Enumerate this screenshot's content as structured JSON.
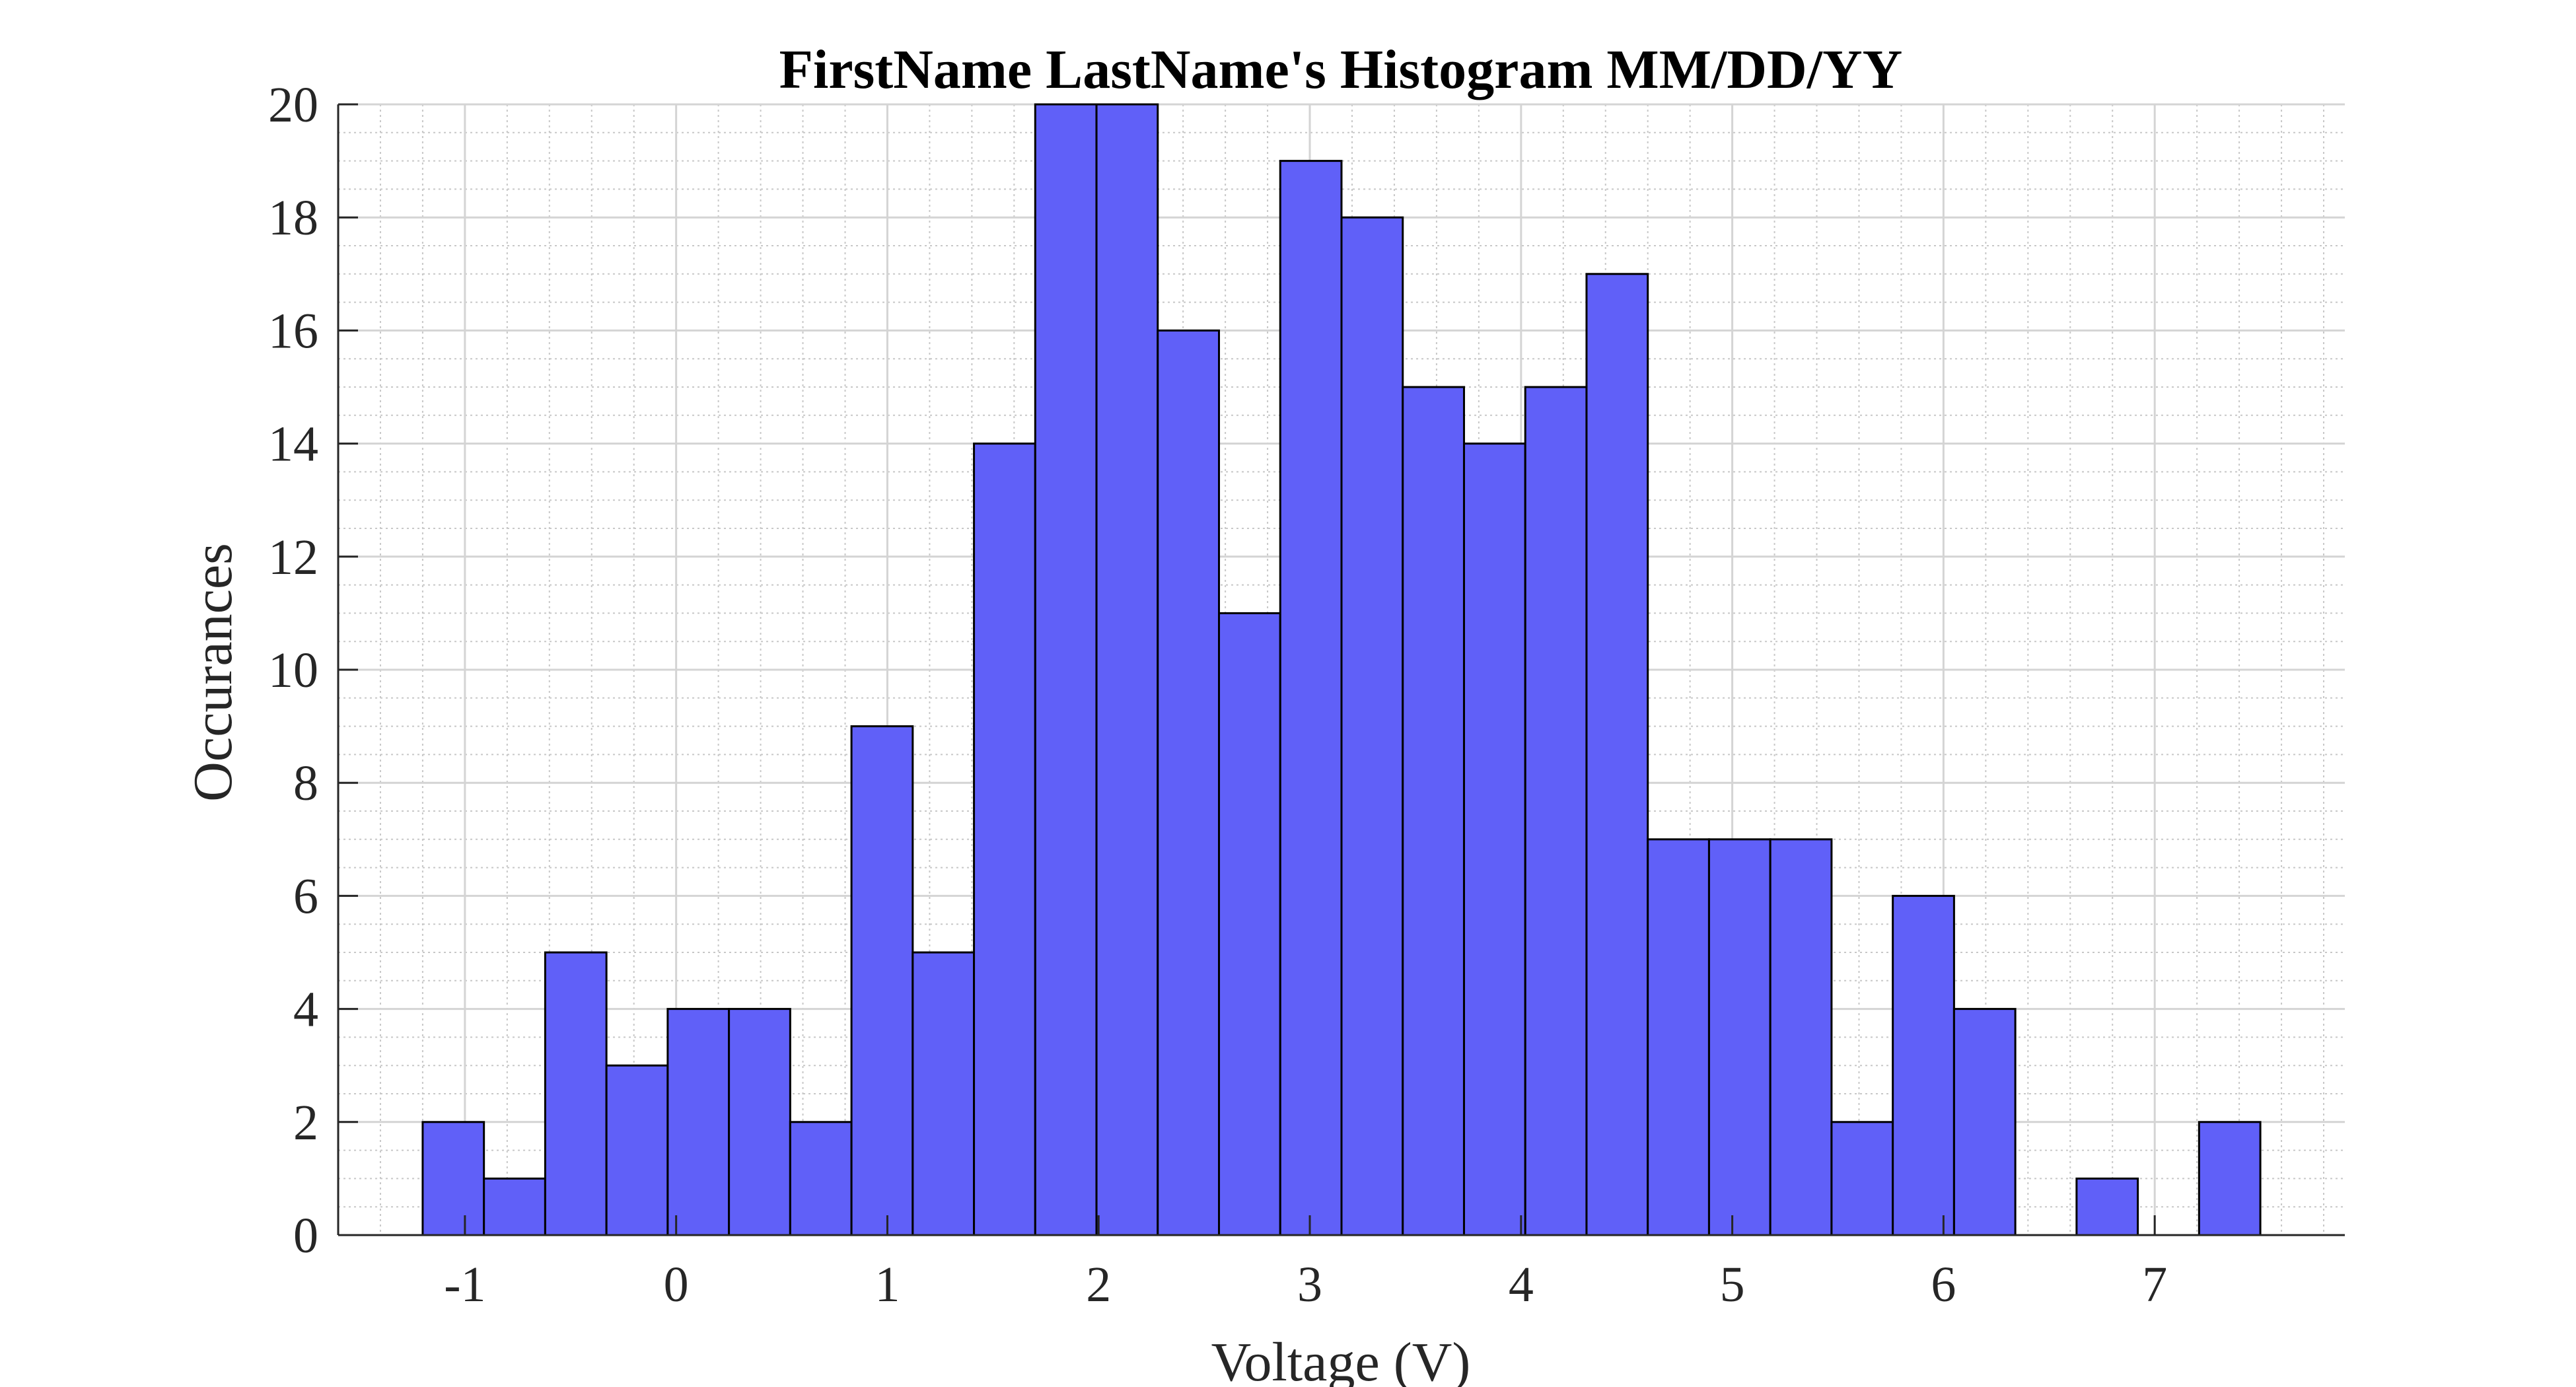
{
  "chart_data": {
    "type": "bar",
    "title": "FirstName LastName's Histogram MM/DD/YY",
    "xlabel": "Voltage (V)",
    "ylabel": "Occurances",
    "bin_edges": [
      -1.2,
      -0.91,
      -0.62,
      -0.33,
      -0.04,
      0.25,
      0.54,
      0.83,
      1.12,
      1.41,
      1.7,
      1.99,
      2.28,
      2.57,
      2.86,
      3.15,
      3.44,
      3.73,
      4.02,
      4.31,
      4.6,
      4.89,
      5.18,
      5.47,
      5.76,
      6.05,
      6.34,
      6.63,
      6.92,
      7.21,
      7.5
    ],
    "values": [
      2,
      1,
      5,
      3,
      4,
      4,
      2,
      9,
      5,
      14,
      20,
      20,
      16,
      11,
      19,
      18,
      15,
      14,
      15,
      17,
      7,
      7,
      7,
      2,
      6,
      4,
      0,
      1,
      0,
      2
    ],
    "xlim": [
      -1.6,
      7.9
    ],
    "ylim": [
      0,
      20
    ],
    "xticks": [
      -1,
      0,
      1,
      2,
      3,
      4,
      5,
      6,
      7
    ],
    "xtick_labels": [
      "-1",
      "0",
      "1",
      "2",
      "3",
      "4",
      "5",
      "6",
      "7"
    ],
    "yticks": [
      0,
      2,
      4,
      6,
      8,
      10,
      12,
      14,
      16,
      18,
      20
    ],
    "ytick_labels": [
      "0",
      "2",
      "4",
      "6",
      "8",
      "10",
      "12",
      "14",
      "16",
      "18",
      "20"
    ],
    "bar_color": "#6060f8",
    "bar_edge_color": "#000000",
    "grid": true,
    "minor_grid": true
  }
}
